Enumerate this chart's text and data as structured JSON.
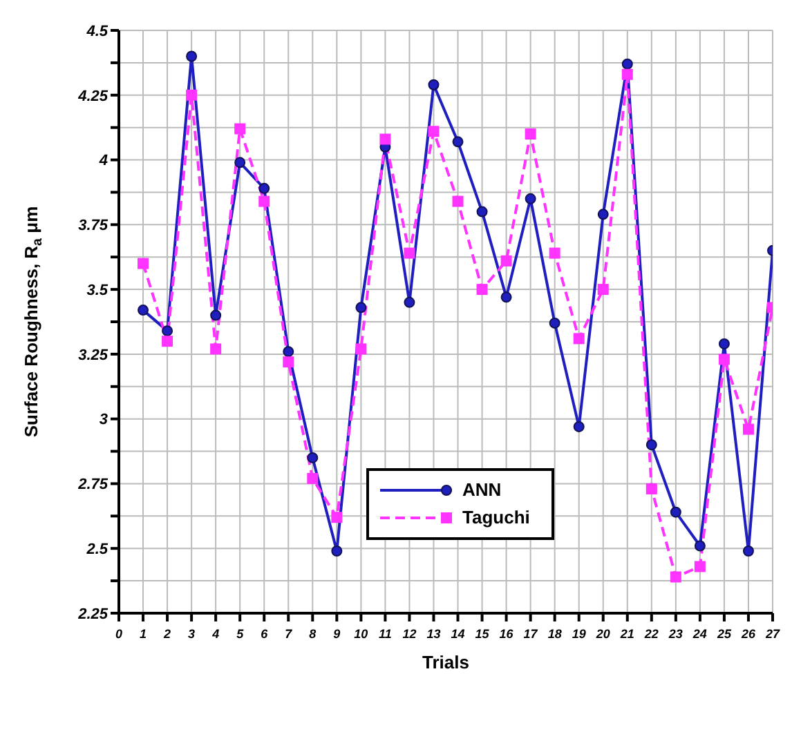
{
  "chart_data": {
    "type": "line",
    "xlabel": "Trials",
    "ylabel": "Surface Roughness, R$_{a}$ μm",
    "x": [
      1,
      2,
      3,
      4,
      5,
      6,
      7,
      8,
      9,
      10,
      11,
      12,
      13,
      14,
      15,
      16,
      17,
      18,
      19,
      20,
      21,
      22,
      23,
      24,
      25,
      26,
      27
    ],
    "series": [
      {
        "name": "ANN",
        "color": "#1f1fc0",
        "marker": "circle",
        "line_style": "solid",
        "values": [
          3.42,
          3.34,
          4.4,
          3.4,
          3.99,
          3.89,
          3.26,
          2.85,
          2.49,
          3.43,
          4.05,
          3.45,
          4.29,
          4.07,
          3.8,
          3.47,
          3.85,
          3.37,
          2.97,
          3.79,
          4.37,
          2.9,
          2.64,
          2.51,
          3.29,
          2.49,
          3.65
        ]
      },
      {
        "name": "Taguchi",
        "color": "#ff33ff",
        "marker": "square",
        "line_style": "dashed",
        "values": [
          3.6,
          3.3,
          4.25,
          3.27,
          4.12,
          3.84,
          3.22,
          2.77,
          2.62,
          3.27,
          4.08,
          3.64,
          4.11,
          3.84,
          3.5,
          3.61,
          4.1,
          3.64,
          3.31,
          3.5,
          4.33,
          2.73,
          2.39,
          2.43,
          3.23,
          2.96,
          3.43
        ]
      }
    ],
    "xlim": [
      0,
      27
    ],
    "xticks": [
      0,
      1,
      2,
      3,
      4,
      5,
      6,
      7,
      8,
      9,
      10,
      11,
      12,
      13,
      14,
      15,
      16,
      17,
      18,
      19,
      20,
      21,
      22,
      23,
      24,
      25,
      26,
      27
    ],
    "ylim": [
      2.25,
      4.5
    ],
    "yticks": [
      2.25,
      {
        "value": 2.375,
        "label": null
      },
      2.5,
      {
        "value": 2.625,
        "label": null
      },
      2.75,
      {
        "value": 2.875,
        "label": null
      },
      3,
      {
        "value": 3.125,
        "label": null
      },
      3.25,
      {
        "value": 3.375,
        "label": null
      },
      3.5,
      {
        "value": 3.625,
        "label": null
      },
      3.75,
      {
        "value": 3.875,
        "label": null
      },
      4,
      {
        "value": 4.125,
        "label": null
      },
      4.25,
      {
        "value": 4.375,
        "label": null
      },
      4.5
    ],
    "grid": true,
    "legend": "bottom"
  }
}
